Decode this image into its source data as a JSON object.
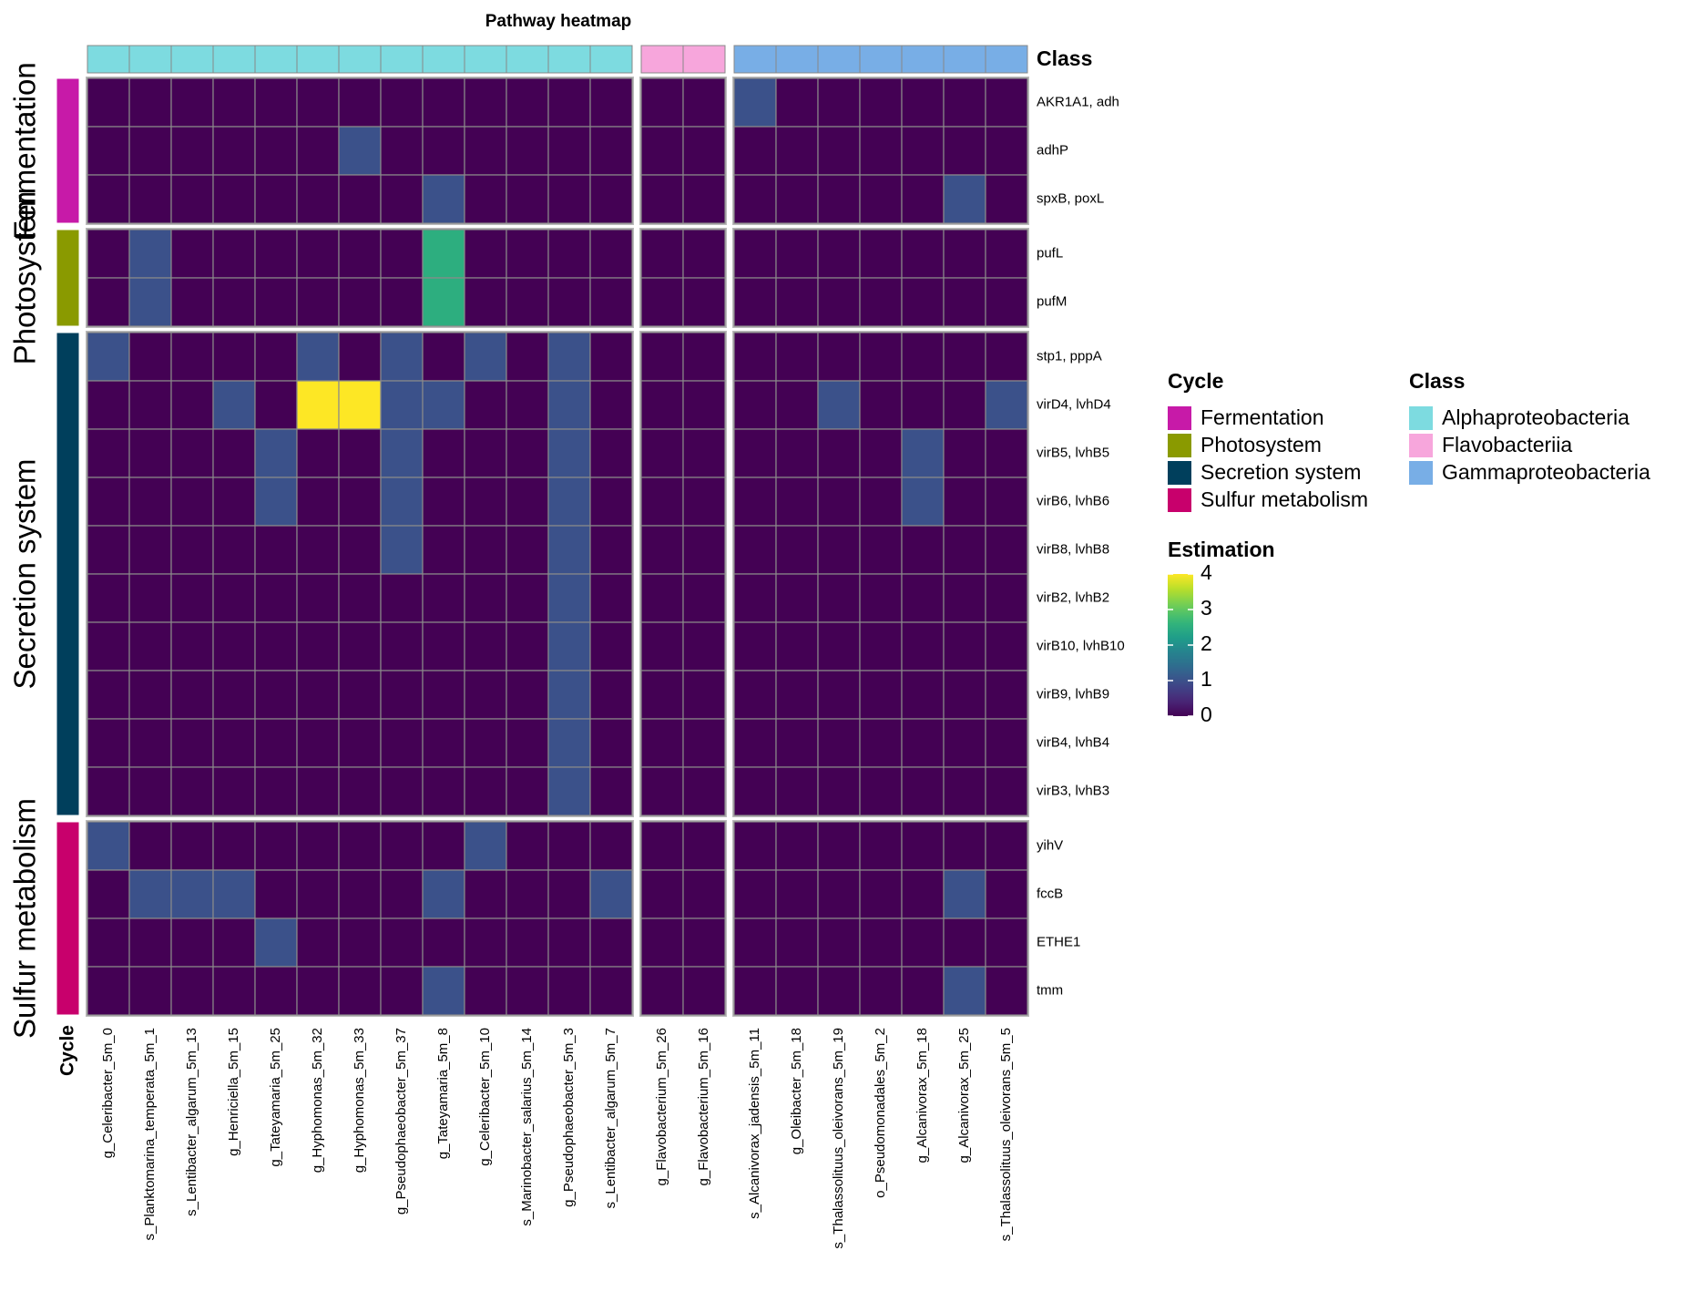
{
  "chart_data": {
    "type": "heatmap",
    "title": "Pathway heatmap",
    "row_annotation": {
      "title": "Cycle",
      "groups": [
        {
          "name": "Fermentation",
          "color": "#c71aa8",
          "rows": [
            "AKR1A1, adh",
            "adhP",
            "spxB, poxL"
          ]
        },
        {
          "name": "Photosystem",
          "color": "#8a9a00",
          "rows": [
            "pufL",
            "pufM"
          ]
        },
        {
          "name": "Secretion system",
          "color": "#003f5c",
          "rows": [
            "stp1, pppA",
            "virD4, lvhD4",
            "virB5, lvhB5",
            "virB6, lvhB6",
            "virB8, lvhB8",
            "virB2, lvhB2",
            "virB10, lvhB10",
            "virB9, lvhB9",
            "virB4, lvhB4",
            "virB3, lvhB3"
          ]
        },
        {
          "name": "Sulfur metabolism",
          "color": "#c8006c",
          "rows": [
            "yihV",
            "fccB",
            "ETHE1",
            "tmm"
          ]
        }
      ]
    },
    "column_annotation": {
      "title": "Class",
      "groups": [
        {
          "name": "Alphaproteobacteria",
          "color": "#7ddbe0",
          "columns": [
            "g_Celeribacter_5m_0",
            "s_Planktomarina_temperata_5m_1",
            "s_Lentibacter_algarum_5m_13",
            "g_Henriciella_5m_15",
            "g_Tateyamaria_5m_25",
            "g_Hyphomonas_5m_32",
            "g_Hyphomonas_5m_33",
            "g_Pseudophaeobacter_5m_37",
            "g_Tateyamaria_5m_8",
            "g_Celeribacter_5m_10",
            "s_Marinobacter_salarius_5m_14",
            "g_Pseudophaeobacter_5m_3",
            "s_Lentibacter_algarum_5m_7"
          ]
        },
        {
          "name": "Flavobacteriia",
          "color": "#f7a6dc",
          "columns": [
            "g_Flavobacterium_5m_26",
            "g_Flavobacterium_5m_16"
          ]
        },
        {
          "name": "Gammaproteobacteria",
          "color": "#78aee6",
          "columns": [
            "s_Alcanivorax_jadensis_5m_11",
            "g_Oleibacter_5m_18",
            "s_Thalassolituus_oleivorans_5m_19",
            "o_Pseudomonadales_5m_2",
            "g_Alcanivorax_5m_18",
            "g_Alcanivorax_5m_25",
            "s_Thalassolituus_oleivorans_5m_5"
          ]
        }
      ]
    },
    "values": [
      [
        0,
        0,
        0,
        0,
        0,
        0,
        0,
        0,
        0,
        0,
        0,
        0,
        0,
        0,
        0,
        1,
        0,
        0,
        0,
        0,
        0,
        0
      ],
      [
        0,
        0,
        0,
        0,
        0,
        0,
        1,
        0,
        0,
        0,
        0,
        0,
        0,
        0,
        0,
        0,
        0,
        0,
        0,
        0,
        0,
        0
      ],
      [
        0,
        0,
        0,
        0,
        0,
        0,
        0,
        0,
        1,
        0,
        0,
        0,
        0,
        0,
        0,
        0,
        0,
        0,
        0,
        0,
        1,
        0
      ],
      [
        0,
        1,
        0,
        0,
        0,
        0,
        0,
        0,
        2.5,
        0,
        0,
        0,
        0,
        0,
        0,
        0,
        0,
        0,
        0,
        0,
        0,
        0
      ],
      [
        0,
        1,
        0,
        0,
        0,
        0,
        0,
        0,
        2.5,
        0,
        0,
        0,
        0,
        0,
        0,
        0,
        0,
        0,
        0,
        0,
        0,
        0
      ],
      [
        1,
        0,
        0,
        0,
        0,
        1,
        0,
        1,
        0,
        1,
        0,
        1,
        0,
        0,
        0,
        0,
        0,
        0,
        0,
        0,
        0,
        0
      ],
      [
        0,
        0,
        0,
        1,
        0,
        4,
        4,
        1,
        1,
        0,
        0,
        1,
        0,
        0,
        0,
        0,
        0,
        1,
        0,
        0,
        0,
        1
      ],
      [
        0,
        0,
        0,
        0,
        1,
        0,
        0,
        1,
        0,
        0,
        0,
        1,
        0,
        0,
        0,
        0,
        0,
        0,
        0,
        1,
        0,
        0
      ],
      [
        0,
        0,
        0,
        0,
        1,
        0,
        0,
        1,
        0,
        0,
        0,
        1,
        0,
        0,
        0,
        0,
        0,
        0,
        0,
        1,
        0,
        0
      ],
      [
        0,
        0,
        0,
        0,
        0,
        0,
        0,
        1,
        0,
        0,
        0,
        1,
        0,
        0,
        0,
        0,
        0,
        0,
        0,
        0,
        0,
        0
      ],
      [
        0,
        0,
        0,
        0,
        0,
        0,
        0,
        0,
        0,
        0,
        0,
        1,
        0,
        0,
        0,
        0,
        0,
        0,
        0,
        0,
        0,
        0
      ],
      [
        0,
        0,
        0,
        0,
        0,
        0,
        0,
        0,
        0,
        0,
        0,
        1,
        0,
        0,
        0,
        0,
        0,
        0,
        0,
        0,
        0,
        0
      ],
      [
        0,
        0,
        0,
        0,
        0,
        0,
        0,
        0,
        0,
        0,
        0,
        1,
        0,
        0,
        0,
        0,
        0,
        0,
        0,
        0,
        0,
        0
      ],
      [
        0,
        0,
        0,
        0,
        0,
        0,
        0,
        0,
        0,
        0,
        0,
        1,
        0,
        0,
        0,
        0,
        0,
        0,
        0,
        0,
        0,
        0
      ],
      [
        0,
        0,
        0,
        0,
        0,
        0,
        0,
        0,
        0,
        0,
        0,
        1,
        0,
        0,
        0,
        0,
        0,
        0,
        0,
        0,
        0,
        0
      ],
      [
        1,
        0,
        0,
        0,
        0,
        0,
        0,
        0,
        0,
        1,
        0,
        0,
        0,
        0,
        0,
        0,
        0,
        0,
        0,
        0,
        0,
        0
      ],
      [
        0,
        1,
        1,
        1,
        0,
        0,
        0,
        0,
        1,
        0,
        0,
        0,
        1,
        0,
        0,
        0,
        0,
        0,
        0,
        0,
        1,
        0
      ],
      [
        0,
        0,
        0,
        0,
        1,
        0,
        0,
        0,
        0,
        0,
        0,
        0,
        0,
        0,
        0,
        0,
        0,
        0,
        0,
        0,
        0,
        0
      ],
      [
        0,
        0,
        0,
        0,
        0,
        0,
        0,
        0,
        1,
        0,
        0,
        0,
        0,
        0,
        0,
        0,
        0,
        0,
        0,
        0,
        1,
        0
      ]
    ],
    "colorbar": {
      "title": "Estimation",
      "lim": [
        0,
        4
      ],
      "ticks": [
        0,
        1,
        2,
        3,
        4
      ],
      "colormap": "viridis"
    }
  }
}
